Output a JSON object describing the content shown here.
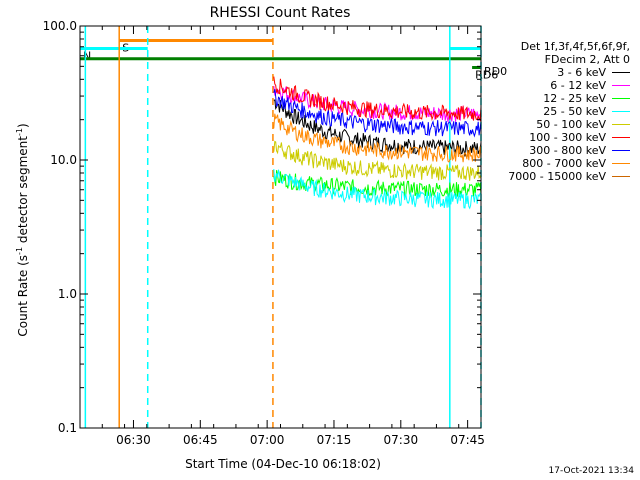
{
  "chart_data": {
    "type": "line",
    "title": "RHESSI Count Rates",
    "xlabel": "Start Time (04-Dec-10 06:18:02)",
    "ylabel_main": "Count Rate (s",
    "ylabel_sup1": "-1",
    "ylabel_mid": " detector segment",
    "ylabel_sup2": "-1",
    "ylabel_end": ")",
    "y_scale": "log",
    "ylim": [
      0.1,
      100
    ],
    "yticks": [
      {
        "value": 0.1,
        "label": "0.1"
      },
      {
        "value": 1,
        "label": "1.0"
      },
      {
        "value": 10,
        "label": "10.0"
      },
      {
        "value": 100,
        "label": "100.0"
      }
    ],
    "xlim_minutes": [
      378,
      468
    ],
    "xticks": [
      {
        "minute": 390,
        "label": "06:30"
      },
      {
        "minute": 405,
        "label": "06:45"
      },
      {
        "minute": 420,
        "label": "07:00"
      },
      {
        "minute": 435,
        "label": "07:15"
      },
      {
        "minute": 450,
        "label": "07:30"
      },
      {
        "minute": 465,
        "label": "07:45"
      }
    ],
    "legend_header": [
      "Det 1f,3f,4f,5f,6f,9f,",
      "FDecim 2, Att 0"
    ],
    "series": [
      {
        "name": "3 - 6 keV",
        "color": "#000000",
        "start": 28,
        "end": 12
      },
      {
        "name": "6 - 12 keV",
        "color": "#ff00ff",
        "start": 35,
        "end": 22
      },
      {
        "name": "12 - 25 keV",
        "color": "#00ff00",
        "start": 7.5,
        "end": 6
      },
      {
        "name": "25 - 50 keV",
        "color": "#00ffff",
        "start": 8,
        "end": 5
      },
      {
        "name": "50 - 100 keV",
        "color": "#cccc00",
        "start": 13,
        "end": 8
      },
      {
        "name": "100 - 300 keV",
        "color": "#ff0000",
        "start": 38,
        "end": 22
      },
      {
        "name": "300 - 800 keV",
        "color": "#0000ff",
        "start": 30,
        "end": 17
      },
      {
        "name": "800 - 7000 keV",
        "color": "#ff8800",
        "start": 20,
        "end": 11
      },
      {
        "name": "7000 - 15000 keV",
        "color": "#cc6600",
        "start": 0,
        "end": 0
      }
    ],
    "data_window_minutes": [
      421.5,
      469.5
    ],
    "vertical_lines": [
      {
        "minute": 379.2,
        "color": "#00ffff",
        "style": "solid"
      },
      {
        "minute": 386.8,
        "color": "#ff8800",
        "style": "solid"
      },
      {
        "minute": 393.2,
        "color": "#00ffff",
        "style": "dashed"
      },
      {
        "minute": 421.3,
        "color": "#ff8800",
        "style": "dashed"
      },
      {
        "minute": 461.0,
        "color": "#00ffff",
        "style": "solid"
      },
      {
        "minute": 479.3,
        "color": "#00ffff",
        "style": "dashed"
      }
    ],
    "flags": [
      {
        "label": "S",
        "color": "#ff8800",
        "from": 386.8,
        "to": 421.3,
        "value": 78
      },
      {
        "label": "N",
        "color": "#00ffff",
        "from": 378.0,
        "to": 393.2,
        "value": 68
      },
      {
        "label": "",
        "color": "#00ffff",
        "from": 461.0,
        "to": 479.3,
        "value": 68
      },
      {
        "label": "",
        "color": "#007f00",
        "from": 378.0,
        "to": 479.3,
        "value": 57
      },
      {
        "label": "RD0",
        "color": "#007f00",
        "from": 470.0,
        "to": 477.5,
        "value": 52
      },
      {
        "label": "RD6",
        "color": "#007f00",
        "from": 466.0,
        "to": 473.0,
        "value": 49
      }
    ],
    "grid": false,
    "legend_position": "right"
  },
  "timestamp": "17-Oct-2021 13:34"
}
